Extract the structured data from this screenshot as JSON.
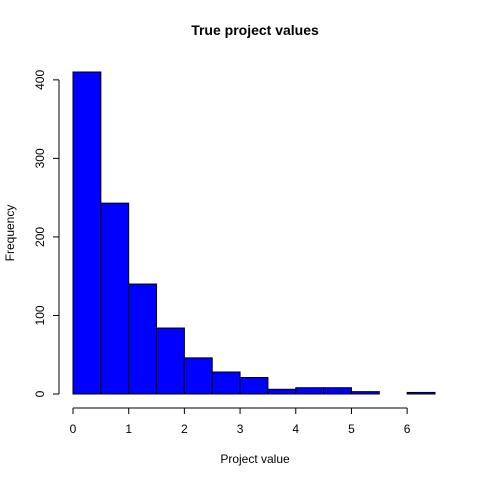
{
  "chart_data": {
    "type": "bar",
    "title": "True project values",
    "xlabel": "Project value",
    "ylabel": "Frequency",
    "bin_edges": [
      0,
      0.5,
      1,
      1.5,
      2,
      2.5,
      3,
      3.5,
      4,
      4.5,
      5,
      5.5,
      6,
      6.5
    ],
    "values": [
      410,
      243,
      140,
      84,
      46,
      28,
      21,
      6,
      8,
      8,
      3,
      0,
      2
    ],
    "xlim": [
      0,
      6.5
    ],
    "ylim": [
      0,
      410
    ],
    "x_ticks": [
      0,
      1,
      2,
      3,
      4,
      5,
      6
    ],
    "y_ticks": [
      0,
      100,
      200,
      300,
      400
    ],
    "bar_color": "#0000ff",
    "bar_border_color": "#000000",
    "grid": false,
    "legend": "none"
  }
}
